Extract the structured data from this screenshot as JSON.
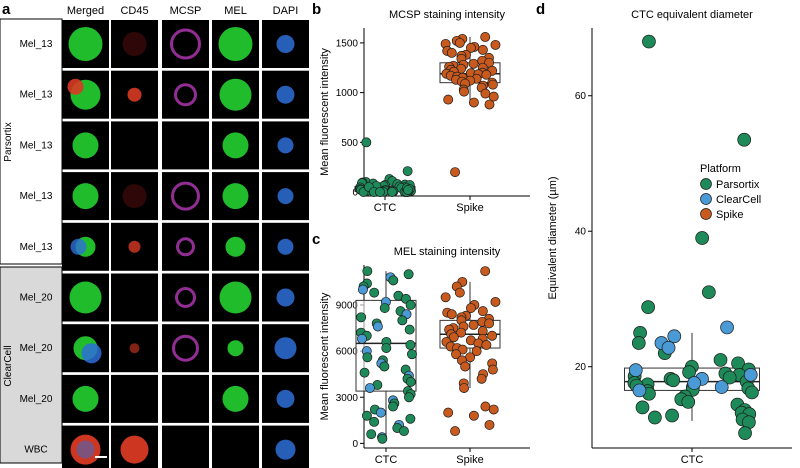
{
  "panel_labels": {
    "a": "a",
    "b": "b",
    "c": "c",
    "d": "d"
  },
  "panel_a": {
    "columns": [
      "Merged",
      "CD45",
      "MCSP",
      "MEL",
      "DAPI"
    ],
    "rows": [
      "Mel_13",
      "Mel_13",
      "Mel_13",
      "Mel_13",
      "Mel_13",
      "Mel_20",
      "Mel_20",
      "Mel_20",
      "WBC"
    ],
    "groups": [
      "Parsortix",
      "ClearCell"
    ],
    "colors": {
      "cell_green": "#22c62e",
      "cell_red": "#d83a24",
      "cell_magenta": "#b63ab8",
      "cell_blue": "#2e6fd8",
      "tile_bg": "#000000",
      "parsortix_bg": "#ffffff",
      "clearcell_bg": "#d9d9d9"
    }
  },
  "chart_data": [
    {
      "id": "b",
      "type": "box",
      "title": "MCSP staining intensity",
      "ylabel": "Mean fluorescent intensity",
      "categories": [
        "CTC",
        "Spike"
      ],
      "ylim": [
        -40,
        1650
      ],
      "yticks": [
        0,
        500,
        1000,
        1500
      ],
      "boxes": [
        {
          "category": "CTC",
          "min": 0,
          "q1": 5,
          "median": 30,
          "q3": 55,
          "max": 130
        },
        {
          "category": "Spike",
          "min": 880,
          "q1": 1100,
          "median": 1190,
          "q3": 1300,
          "max": 1560
        }
      ],
      "series": [
        {
          "name": "CTC",
          "color": "#1e8a5a",
          "values": [
            500,
            210,
            130,
            110,
            100,
            95,
            90,
            85,
            80,
            75,
            70,
            65,
            60,
            55,
            50,
            45,
            40,
            38,
            35,
            30,
            28,
            25,
            22,
            20,
            18,
            15,
            12,
            10,
            8,
            5,
            3,
            2,
            0,
            0,
            0,
            0,
            70,
            60,
            50,
            40,
            30,
            20,
            10,
            5,
            0,
            0,
            0
          ]
        },
        {
          "name": "Spike",
          "color": "#c85a1e",
          "values": [
            1560,
            1540,
            1520,
            1500,
            1490,
            1480,
            1460,
            1450,
            1430,
            1420,
            1400,
            1380,
            1370,
            1350,
            1340,
            1320,
            1300,
            1290,
            1280,
            1270,
            1260,
            1250,
            1240,
            1230,
            1220,
            1210,
            1200,
            1195,
            1190,
            1185,
            1180,
            1170,
            1160,
            1150,
            1140,
            1130,
            1120,
            1110,
            1100,
            1090,
            1080,
            1070,
            1050,
            1030,
            1010,
            990,
            960,
            930,
            900,
            880,
            200
          ]
        }
      ]
    },
    {
      "id": "c",
      "type": "box",
      "title": "MEL staining intensity",
      "ylabel": "Mean fluorescent intensity",
      "categories": [
        "CTC",
        "Spike"
      ],
      "ylim": [
        -300,
        11600
      ],
      "yticks": [
        0,
        3000,
        6000,
        9000
      ],
      "boxes": [
        {
          "category": "CTC",
          "min": 300,
          "q1": 3400,
          "median": 6500,
          "q3": 9300,
          "max": 11200
        },
        {
          "category": "Spike",
          "min": 3600,
          "q1": 6200,
          "median": 7100,
          "q3": 8000,
          "max": 10500
        }
      ],
      "series": [
        {
          "name": "CTC",
          "color_green": "#1e8a5a",
          "color_blue": "#4a9ad6",
          "values": [
            11200,
            11000,
            10800,
            10600,
            10400,
            10200,
            10000,
            9800,
            9600,
            9400,
            9200,
            9000,
            8800,
            8600,
            8400,
            8200,
            8000,
            7800,
            7600,
            7400,
            7200,
            7000,
            6800,
            6600,
            6400,
            6200,
            6000,
            5800,
            5600,
            5400,
            5200,
            5000,
            4800,
            4600,
            4400,
            4200,
            4000,
            3800,
            3600,
            3400,
            3200,
            3000,
            2800,
            2600,
            2400,
            2200,
            2000,
            1800,
            1600,
            1400,
            1200,
            1000,
            800,
            600,
            400,
            300
          ]
        },
        {
          "name": "Spike",
          "color": "#c85a1e",
          "values": [
            11200,
            10500,
            10200,
            9800,
            9500,
            9200,
            9000,
            8800,
            8600,
            8500,
            8400,
            8300,
            8200,
            8100,
            8000,
            7900,
            7800,
            7700,
            7600,
            7500,
            7400,
            7300,
            7200,
            7100,
            7000,
            6900,
            6800,
            6700,
            6600,
            6500,
            6400,
            6300,
            6200,
            6100,
            6000,
            5800,
            5600,
            5400,
            5200,
            5000,
            4800,
            4500,
            4200,
            3900,
            3600,
            2400,
            2200,
            2000,
            1800,
            1200,
            800
          ]
        }
      ]
    },
    {
      "id": "d",
      "type": "box",
      "title": "CTC equivalent diameter",
      "ylabel": "Equivalent diameter (µm)",
      "categories": [
        "CTC"
      ],
      "ylim": [
        8,
        70
      ],
      "yticks": [
        20,
        40,
        60
      ],
      "boxes": [
        {
          "category": "CTC",
          "min": 12,
          "q1": 16.5,
          "median": 17.8,
          "q3": 19.8,
          "max": 25
        }
      ],
      "legend": {
        "title": "Platform",
        "entries": [
          {
            "label": "Parsortix",
            "color": "#1e8a5a"
          },
          {
            "label": "ClearCell",
            "color": "#4a9ad6"
          },
          {
            "label": "Spike",
            "color": "#c85a1e"
          }
        ]
      },
      "series": [
        {
          "name": "Parsortix",
          "color": "#1e8a5a",
          "values": [
            68,
            53.5,
            39,
            31,
            28.8,
            25,
            23.5,
            22,
            21,
            20.5,
            20,
            19.6,
            19.2,
            19,
            18.8,
            18.6,
            18.4,
            18.2,
            18,
            17.8,
            17.6,
            17.4,
            17.2,
            17,
            16.8,
            16.6,
            16.4,
            16.2,
            16,
            15.6,
            15.2,
            14.8,
            14.4,
            14,
            13.6,
            13.2,
            13,
            12.8,
            12.5,
            12.2,
            11.8,
            10.2
          ]
        },
        {
          "name": "ClearCell",
          "color": "#4a9ad6",
          "values": [
            25.8,
            24.5,
            23.5,
            22.8,
            19.5,
            18.8,
            18.2,
            17.6,
            17,
            16.5
          ]
        }
      ]
    }
  ]
}
